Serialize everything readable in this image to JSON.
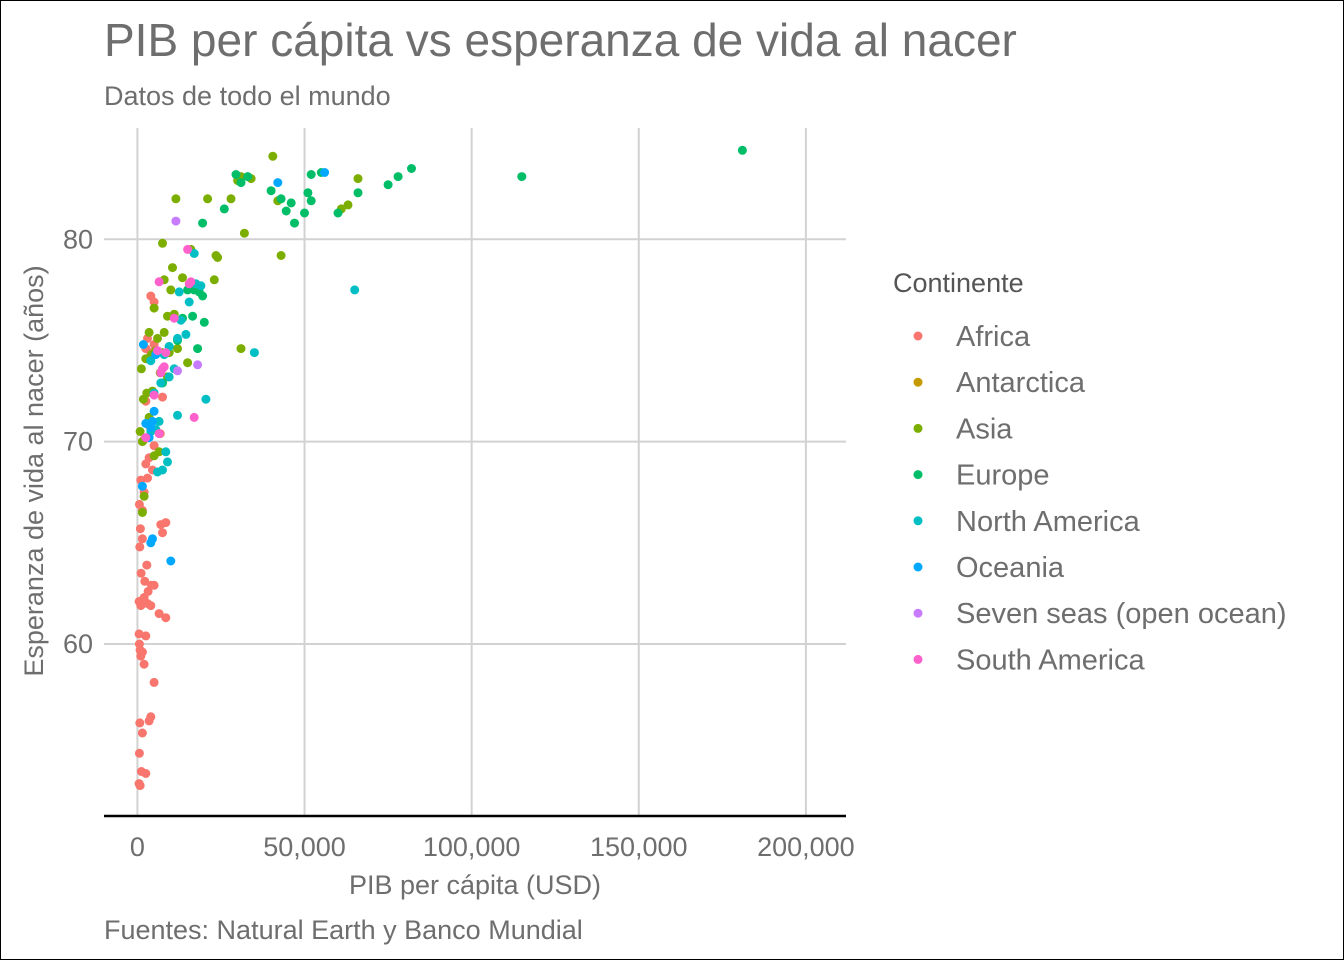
{
  "chart_data": {
    "type": "scatter",
    "title": "PIB per cápita vs esperanza de vida al nacer",
    "subtitle": "Datos de todo el mundo",
    "caption": "Fuentes: Natural Earth y Banco Mundial",
    "xlabel": "PIB per cápita  (USD)",
    "ylabel": "Esperanza de vida al nacer (años)",
    "xlim": [
      -10000,
      212000
    ],
    "ylim": [
      51.5,
      85.5
    ],
    "x_ticks": [
      0,
      50000,
      100000,
      150000,
      200000
    ],
    "x_tick_labels": [
      "0",
      "50,000",
      "100,000",
      "150,000",
      "200,000"
    ],
    "y_ticks": [
      60,
      70,
      80
    ],
    "y_tick_labels": [
      "60",
      "70",
      "80"
    ],
    "grid": true,
    "legend": {
      "title": "Continente",
      "placement": "right",
      "entries": [
        {
          "name": "Africa",
          "color": "#F8766D"
        },
        {
          "name": "Antarctica",
          "color": "#C49A00"
        },
        {
          "name": "Asia",
          "color": "#7CAE00"
        },
        {
          "name": "Europe",
          "color": "#00BE67"
        },
        {
          "name": "North America",
          "color": "#00BFC4"
        },
        {
          "name": "Oceania",
          "color": "#00A9FF"
        },
        {
          "name": "Seven seas (open ocean)",
          "color": "#C77CFF"
        },
        {
          "name": "South America",
          "color": "#FF61CC"
        }
      ]
    },
    "series": [
      {
        "name": "Africa",
        "color": "#F8766D",
        "points": [
          [
            500,
            53.1
          ],
          [
            800,
            53.0
          ],
          [
            1200,
            53.7
          ],
          [
            2500,
            53.6
          ],
          [
            600,
            54.6
          ],
          [
            1500,
            55.6
          ],
          [
            700,
            56.1
          ],
          [
            4000,
            56.4
          ],
          [
            3500,
            56.2
          ],
          [
            5000,
            58.1
          ],
          [
            2000,
            59.0
          ],
          [
            1000,
            59.4
          ],
          [
            800,
            59.7
          ],
          [
            600,
            60.0
          ],
          [
            1500,
            59.6
          ],
          [
            500,
            60.5
          ],
          [
            2500,
            60.4
          ],
          [
            6500,
            61.5
          ],
          [
            8500,
            61.3
          ],
          [
            1000,
            61.9
          ],
          [
            1500,
            62.1
          ],
          [
            3000,
            62.0
          ],
          [
            4000,
            61.9
          ],
          [
            500,
            62.1
          ],
          [
            2000,
            62.3
          ],
          [
            3200,
            62.6
          ],
          [
            4200,
            62.9
          ],
          [
            5000,
            62.9
          ],
          [
            2200,
            63.1
          ],
          [
            1100,
            63.5
          ],
          [
            2800,
            63.9
          ],
          [
            700,
            64.8
          ],
          [
            1500,
            65.2
          ],
          [
            900,
            65.7
          ],
          [
            7000,
            65.9
          ],
          [
            8500,
            66.0
          ],
          [
            7500,
            65.5
          ],
          [
            1500,
            66.6
          ],
          [
            600,
            66.9
          ],
          [
            2000,
            67.5
          ],
          [
            1000,
            68.1
          ],
          [
            3000,
            68.2
          ],
          [
            4500,
            68.6
          ],
          [
            2500,
            68.9
          ],
          [
            3500,
            69.2
          ],
          [
            5000,
            69.8
          ],
          [
            2000,
            70.1
          ],
          [
            6800,
            70.4
          ],
          [
            4000,
            70.6
          ],
          [
            3500,
            70.8
          ],
          [
            2500,
            72.0
          ],
          [
            7500,
            72.2
          ],
          [
            3000,
            74.1
          ],
          [
            4000,
            74.4
          ],
          [
            2500,
            74.6
          ],
          [
            5000,
            74.8
          ],
          [
            3000,
            75.1
          ],
          [
            4000,
            77.2
          ],
          [
            5000,
            76.9
          ]
        ]
      },
      {
        "name": "Asia",
        "color": "#7CAE00",
        "points": [
          [
            1500,
            66.5
          ],
          [
            2000,
            67.3
          ],
          [
            800,
            70.5
          ],
          [
            1500,
            70.0
          ],
          [
            3000,
            70.9
          ],
          [
            5000,
            69.3
          ],
          [
            6500,
            69.5
          ],
          [
            3500,
            71.2
          ],
          [
            1800,
            72.1
          ],
          [
            2800,
            72.4
          ],
          [
            4500,
            72.5
          ],
          [
            1200,
            73.6
          ],
          [
            6800,
            73.4
          ],
          [
            9000,
            73.2
          ],
          [
            15000,
            73.9
          ],
          [
            2500,
            74.1
          ],
          [
            4200,
            74.3
          ],
          [
            5500,
            74.5
          ],
          [
            7500,
            74.4
          ],
          [
            9500,
            74.4
          ],
          [
            12000,
            74.6
          ],
          [
            3500,
            75.4
          ],
          [
            6000,
            75.1
          ],
          [
            8000,
            75.4
          ],
          [
            9000,
            76.2
          ],
          [
            5000,
            76.6
          ],
          [
            11000,
            76.3
          ],
          [
            10000,
            77.5
          ],
          [
            8000,
            78.0
          ],
          [
            13500,
            78.1
          ],
          [
            10500,
            78.6
          ],
          [
            7500,
            79.8
          ],
          [
            16000,
            79.5
          ],
          [
            23500,
            79.2
          ],
          [
            24000,
            79.1
          ],
          [
            23000,
            78.0
          ],
          [
            43000,
            79.2
          ],
          [
            32000,
            80.3
          ],
          [
            11500,
            82.0
          ],
          [
            21000,
            82.0
          ],
          [
            28000,
            82.0
          ],
          [
            30000,
            82.9
          ],
          [
            31000,
            83.1
          ],
          [
            34000,
            83.0
          ],
          [
            40500,
            84.1
          ],
          [
            42000,
            81.9
          ],
          [
            61000,
            81.5
          ],
          [
            63000,
            81.7
          ],
          [
            66000,
            83.0
          ],
          [
            31000,
            74.6
          ]
        ]
      },
      {
        "name": "Europe",
        "color": "#00BE67",
        "points": [
          [
            7500,
            72.9
          ],
          [
            9500,
            74.7
          ],
          [
            12000,
            75.0
          ],
          [
            13500,
            76.1
          ],
          [
            15000,
            77.5
          ],
          [
            16500,
            76.2
          ],
          [
            17000,
            77.5
          ],
          [
            18500,
            77.4
          ],
          [
            19500,
            77.2
          ],
          [
            20000,
            75.9
          ],
          [
            18000,
            74.6
          ],
          [
            19500,
            80.8
          ],
          [
            26000,
            81.5
          ],
          [
            29500,
            83.2
          ],
          [
            31000,
            82.8
          ],
          [
            33000,
            83.1
          ],
          [
            40000,
            82.4
          ],
          [
            43000,
            82.0
          ],
          [
            44500,
            81.4
          ],
          [
            46000,
            81.8
          ],
          [
            47000,
            80.8
          ],
          [
            50000,
            81.3
          ],
          [
            51000,
            82.3
          ],
          [
            52000,
            81.9
          ],
          [
            52000,
            83.2
          ],
          [
            55000,
            83.3
          ],
          [
            60000,
            81.3
          ],
          [
            66000,
            82.3
          ],
          [
            75000,
            82.7
          ],
          [
            78000,
            83.1
          ],
          [
            82000,
            83.5
          ],
          [
            115000,
            83.1
          ],
          [
            181000,
            84.4
          ]
        ]
      },
      {
        "name": "North America",
        "color": "#00BFC4",
        "points": [
          [
            6000,
            68.5
          ],
          [
            7500,
            68.6
          ],
          [
            9000,
            69.0
          ],
          [
            8500,
            69.5
          ],
          [
            4000,
            70.5
          ],
          [
            5500,
            70.6
          ],
          [
            6500,
            71.0
          ],
          [
            12000,
            71.3
          ],
          [
            20500,
            72.1
          ],
          [
            5000,
            72.4
          ],
          [
            7000,
            72.9
          ],
          [
            9500,
            73.2
          ],
          [
            11000,
            73.6
          ],
          [
            4000,
            74.0
          ],
          [
            8000,
            74.3
          ],
          [
            9500,
            74.7
          ],
          [
            12000,
            75.1
          ],
          [
            14500,
            75.3
          ],
          [
            35000,
            74.4
          ],
          [
            13000,
            76.0
          ],
          [
            12500,
            77.4
          ],
          [
            15500,
            76.9
          ],
          [
            17500,
            77.8
          ],
          [
            19000,
            77.7
          ],
          [
            17000,
            79.3
          ],
          [
            65000,
            77.5
          ]
        ]
      },
      {
        "name": "Oceania",
        "color": "#00A9FF",
        "points": [
          [
            1500,
            67.8
          ],
          [
            4000,
            65.0
          ],
          [
            4500,
            65.2
          ],
          [
            10000,
            64.1
          ],
          [
            3500,
            70.2
          ],
          [
            4000,
            70.7
          ],
          [
            4500,
            71.0
          ],
          [
            5000,
            71.5
          ],
          [
            2500,
            70.9
          ],
          [
            1800,
            74.8
          ],
          [
            5500,
            74.3
          ],
          [
            42000,
            82.8
          ],
          [
            56000,
            83.3
          ]
        ]
      },
      {
        "name": "Seven seas (open ocean)",
        "color": "#C77CFF",
        "points": [
          [
            11500,
            80.9
          ],
          [
            18000,
            73.8
          ],
          [
            12000,
            73.5
          ]
        ]
      },
      {
        "name": "South America",
        "color": "#FF61CC",
        "points": [
          [
            2500,
            70.2
          ],
          [
            6500,
            70.4
          ],
          [
            5000,
            72.3
          ],
          [
            7000,
            73.4
          ],
          [
            7500,
            73.6
          ],
          [
            8000,
            73.7
          ],
          [
            6000,
            74.5
          ],
          [
            8500,
            74.4
          ],
          [
            11000,
            76.1
          ],
          [
            6500,
            77.9
          ],
          [
            15500,
            77.8
          ],
          [
            16000,
            77.9
          ],
          [
            15000,
            79.5
          ],
          [
            17000,
            71.2
          ]
        ]
      }
    ]
  }
}
